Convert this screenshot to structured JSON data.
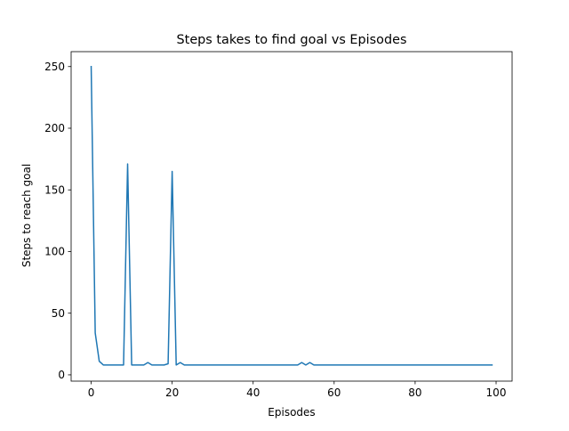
{
  "chart_data": {
    "type": "line",
    "title": "Steps takes to find goal vs Episodes",
    "xlabel": "Episodes",
    "ylabel": "Steps to reach goal",
    "xlim": [
      -4.95,
      103.95
    ],
    "ylim": [
      -5.1,
      262.1
    ],
    "xticks": [
      0,
      20,
      40,
      60,
      80,
      100
    ],
    "yticks": [
      0,
      50,
      100,
      150,
      200,
      250
    ],
    "grid": false,
    "series": [
      {
        "color": "#1f77b4",
        "x": [
          0,
          1,
          2,
          3,
          4,
          5,
          6,
          7,
          8,
          9,
          10,
          11,
          12,
          13,
          14,
          15,
          16,
          17,
          18,
          19,
          20,
          21,
          22,
          23,
          24,
          25,
          26,
          27,
          28,
          29,
          30,
          31,
          32,
          33,
          34,
          35,
          36,
          37,
          38,
          39,
          40,
          41,
          42,
          43,
          44,
          45,
          46,
          47,
          48,
          49,
          50,
          51,
          52,
          53,
          54,
          55,
          56,
          57,
          58,
          59,
          60,
          61,
          62,
          63,
          64,
          65,
          66,
          67,
          68,
          69,
          70,
          71,
          72,
          73,
          74,
          75,
          76,
          77,
          78,
          79,
          80,
          81,
          82,
          83,
          84,
          85,
          86,
          87,
          88,
          89,
          90,
          91,
          92,
          93,
          94,
          95,
          96,
          97,
          98,
          99
        ],
        "y": [
          250,
          34,
          11,
          8,
          8,
          8,
          8,
          8,
          8,
          171,
          8,
          8,
          8,
          8,
          10,
          8,
          8,
          8,
          8,
          9,
          165,
          8,
          10,
          8,
          8,
          8,
          8,
          8,
          8,
          8,
          8,
          8,
          8,
          8,
          8,
          8,
          8,
          8,
          8,
          8,
          8,
          8,
          8,
          8,
          8,
          8,
          8,
          8,
          8,
          8,
          8,
          8,
          10,
          8,
          10,
          8,
          8,
          8,
          8,
          8,
          8,
          8,
          8,
          8,
          8,
          8,
          8,
          8,
          8,
          8,
          8,
          8,
          8,
          8,
          8,
          8,
          8,
          8,
          8,
          8,
          8,
          8,
          8,
          8,
          8,
          8,
          8,
          8,
          8,
          8,
          8,
          8,
          8,
          8,
          8,
          8,
          8,
          8,
          8,
          8
        ]
      }
    ]
  }
}
